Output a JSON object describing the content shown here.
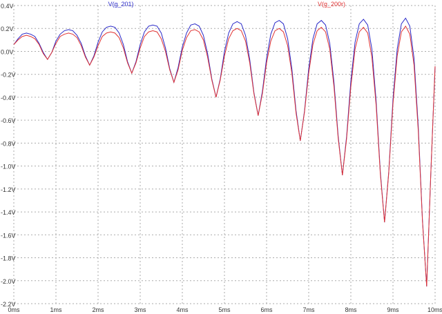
{
  "chart_data": {
    "type": "line",
    "x": [
      0,
      0.1,
      0.2,
      0.3,
      0.4,
      0.5,
      0.6,
      0.7,
      0.8,
      0.9,
      1,
      1.1,
      1.2,
      1.3,
      1.4,
      1.5,
      1.6,
      1.7,
      1.8,
      1.9,
      2,
      2.1,
      2.2,
      2.3,
      2.4,
      2.5,
      2.6,
      2.7,
      2.8,
      2.9,
      3,
      3.1,
      3.2,
      3.3,
      3.4,
      3.5,
      3.6,
      3.7,
      3.8,
      3.9,
      4,
      4.1,
      4.2,
      4.3,
      4.4,
      4.5,
      4.6,
      4.7,
      4.8,
      4.9,
      5,
      5.1,
      5.2,
      5.3,
      5.4,
      5.5,
      5.6,
      5.7,
      5.8,
      5.9,
      6,
      6.1,
      6.2,
      6.3,
      6.4,
      6.5,
      6.6,
      6.7,
      6.8,
      6.9,
      7,
      7.1,
      7.2,
      7.3,
      7.4,
      7.5,
      7.6,
      7.7,
      7.8,
      7.9,
      8,
      8.1,
      8.2,
      8.3,
      8.4,
      8.5,
      8.6,
      8.7,
      8.8,
      8.9,
      9,
      9.1,
      9.2,
      9.3,
      9.4,
      9.5,
      9.6,
      9.7,
      9.8,
      9.9,
      10
    ],
    "series": [
      {
        "name": "V(g_201)",
        "color": "#2828c8",
        "values": [
          0.06,
          0.11,
          0.15,
          0.16,
          0.15,
          0.13,
          0.07,
          -0.01,
          -0.07,
          -0.01,
          0.09,
          0.15,
          0.18,
          0.19,
          0.18,
          0.14,
          0.07,
          -0.04,
          -0.12,
          -0.04,
          0.08,
          0.17,
          0.21,
          0.22,
          0.21,
          0.16,
          0.06,
          -0.09,
          -0.19,
          -0.09,
          0.06,
          0.17,
          0.22,
          0.23,
          0.22,
          0.16,
          0.03,
          -0.15,
          -0.27,
          -0.14,
          0.04,
          0.16,
          0.23,
          0.24,
          0.22,
          0.14,
          -0.02,
          -0.24,
          -0.4,
          -0.24,
          0,
          0.16,
          0.24,
          0.26,
          0.24,
          0.14,
          -0.07,
          -0.36,
          -0.56,
          -0.35,
          -0.06,
          0.15,
          0.25,
          0.27,
          0.24,
          0.11,
          -0.15,
          -0.52,
          -0.78,
          -0.52,
          -0.15,
          0.11,
          0.24,
          0.27,
          0.23,
          0.07,
          -0.27,
          -0.74,
          -1.08,
          -0.74,
          -0.26,
          0.08,
          0.24,
          0.28,
          0.23,
          0.02,
          -0.43,
          -1.05,
          -1.49,
          -1.05,
          -0.42,
          0.02,
          0.24,
          0.29,
          0.22,
          -0.06,
          -0.65,
          -1.47,
          -2.05,
          -1.05,
          -0.13
        ]
      },
      {
        "name": "V(g_200r)",
        "color": "#e03232",
        "values": [
          0.06,
          0.1,
          0.13,
          0.14,
          0.13,
          0.11,
          0.06,
          -0.02,
          -0.07,
          -0.01,
          0.07,
          0.13,
          0.15,
          0.16,
          0.15,
          0.12,
          0.05,
          -0.05,
          -0.12,
          -0.05,
          0.05,
          0.13,
          0.16,
          0.17,
          0.16,
          0.12,
          0.03,
          -0.1,
          -0.19,
          -0.1,
          0.03,
          0.13,
          0.17,
          0.18,
          0.17,
          0.11,
          0,
          -0.16,
          -0.27,
          -0.16,
          0.01,
          0.12,
          0.18,
          0.19,
          0.17,
          0.1,
          -0.05,
          -0.25,
          -0.4,
          -0.25,
          -0.04,
          0.11,
          0.18,
          0.2,
          0.18,
          0.09,
          -0.1,
          -0.37,
          -0.56,
          -0.37,
          -0.1,
          0.09,
          0.18,
          0.2,
          0.17,
          0.05,
          -0.19,
          -0.54,
          -0.78,
          -0.53,
          -0.19,
          0.06,
          0.18,
          0.21,
          0.17,
          0.02,
          -0.31,
          -0.76,
          -1.08,
          -0.76,
          -0.31,
          0.02,
          0.17,
          0.21,
          0.16,
          -0.05,
          -0.47,
          -1.07,
          -1.49,
          -1.06,
          -0.46,
          -0.04,
          0.17,
          0.22,
          0.15,
          -0.12,
          -0.69,
          -1.48,
          -2.05,
          -1.05,
          -0.13
        ]
      }
    ],
    "xlim": [
      0,
      10
    ],
    "xticks": [
      {
        "value": 0,
        "label": "0ms"
      },
      {
        "value": 1,
        "label": "1ms"
      },
      {
        "value": 2,
        "label": "2ms"
      },
      {
        "value": 3,
        "label": "3ms"
      },
      {
        "value": 4,
        "label": "4ms"
      },
      {
        "value": 5,
        "label": "5ms"
      },
      {
        "value": 6,
        "label": "6ms"
      },
      {
        "value": 7,
        "label": "7ms"
      },
      {
        "value": 8,
        "label": "8ms"
      },
      {
        "value": 9,
        "label": "9ms"
      },
      {
        "value": 10,
        "label": "10ms"
      }
    ],
    "ylim": [
      -2.2,
      0.4
    ],
    "yticks": [
      {
        "value": 0.4,
        "label": "0.4V"
      },
      {
        "value": 0.2,
        "label": "0.2V"
      },
      {
        "value": 0,
        "label": "0.0V"
      },
      {
        "value": -0.2,
        "label": "-0.2V"
      },
      {
        "value": -0.4,
        "label": "-0.4V"
      },
      {
        "value": -0.6,
        "label": "-0.6V"
      },
      {
        "value": -0.8,
        "label": "-0.8V"
      },
      {
        "value": -1.0,
        "label": "-1.0V"
      },
      {
        "value": -1.2,
        "label": "-1.2V"
      },
      {
        "value": -1.4,
        "label": "-1.4V"
      },
      {
        "value": -1.6,
        "label": "-1.6V"
      },
      {
        "value": -1.8,
        "label": "-1.8V"
      },
      {
        "value": -2.0,
        "label": "-2.0V"
      },
      {
        "value": -2.2,
        "label": "-2.2V"
      }
    ],
    "grid": true
  }
}
